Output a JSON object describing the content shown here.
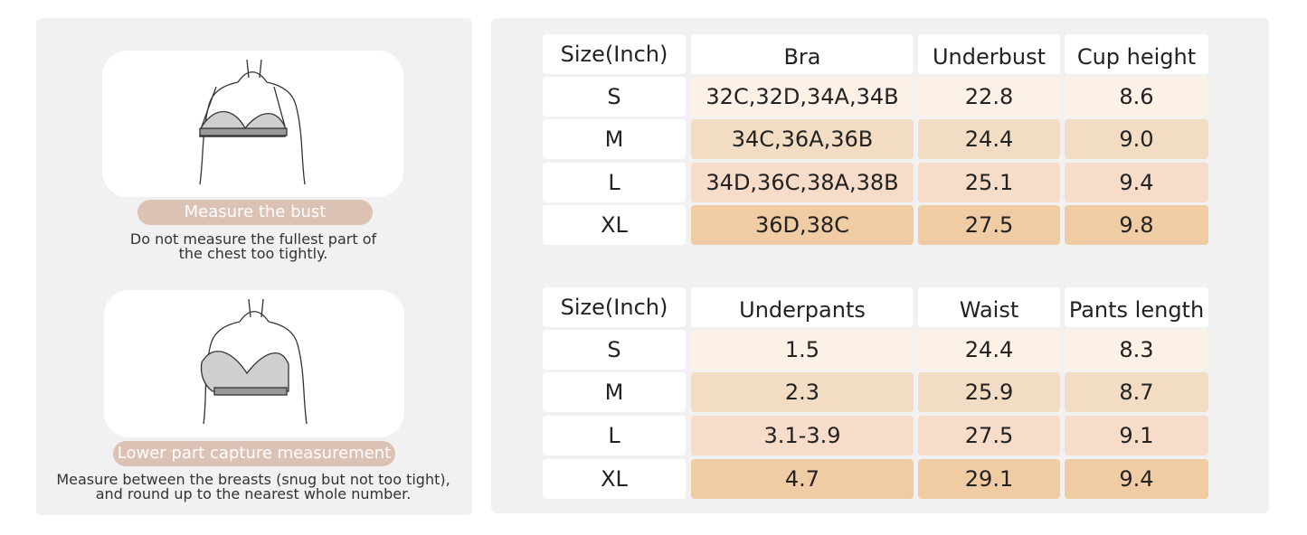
{
  "guide": [
    {
      "label": "Measure the bust",
      "caption": [
        "Do not measure the fullest part of",
        "the chest too tightly."
      ]
    },
    {
      "label": "Lower part capture measurement",
      "caption": [
        "Measure between the breasts (snug but not too tight),",
        "and round up to the nearest whole number."
      ]
    }
  ],
  "tables": [
    {
      "header": [
        "Size(Inch)",
        "Bra",
        "Underbust",
        "Cup height"
      ],
      "rows": [
        [
          "S",
          "32C,32D,34A,34B",
          "22.8",
          "8.6"
        ],
        [
          "M",
          "34C,36A,36B",
          "24.4",
          "9.0"
        ],
        [
          "L",
          "34D,36C,38A,38B",
          "25.1",
          "9.4"
        ],
        [
          "XL",
          "36D,38C",
          "27.5",
          "9.8"
        ]
      ]
    },
    {
      "header": [
        "Size(Inch)",
        "Underpants",
        "Waist",
        "Pants length"
      ],
      "rows": [
        [
          "S",
          "1.5",
          "24.4",
          "8.3"
        ],
        [
          "M",
          "2.3",
          "25.9",
          "8.7"
        ],
        [
          "L",
          "3.1-3.9",
          "27.5",
          "9.1"
        ],
        [
          "XL",
          "4.7",
          "29.1",
          "9.4"
        ]
      ]
    }
  ]
}
